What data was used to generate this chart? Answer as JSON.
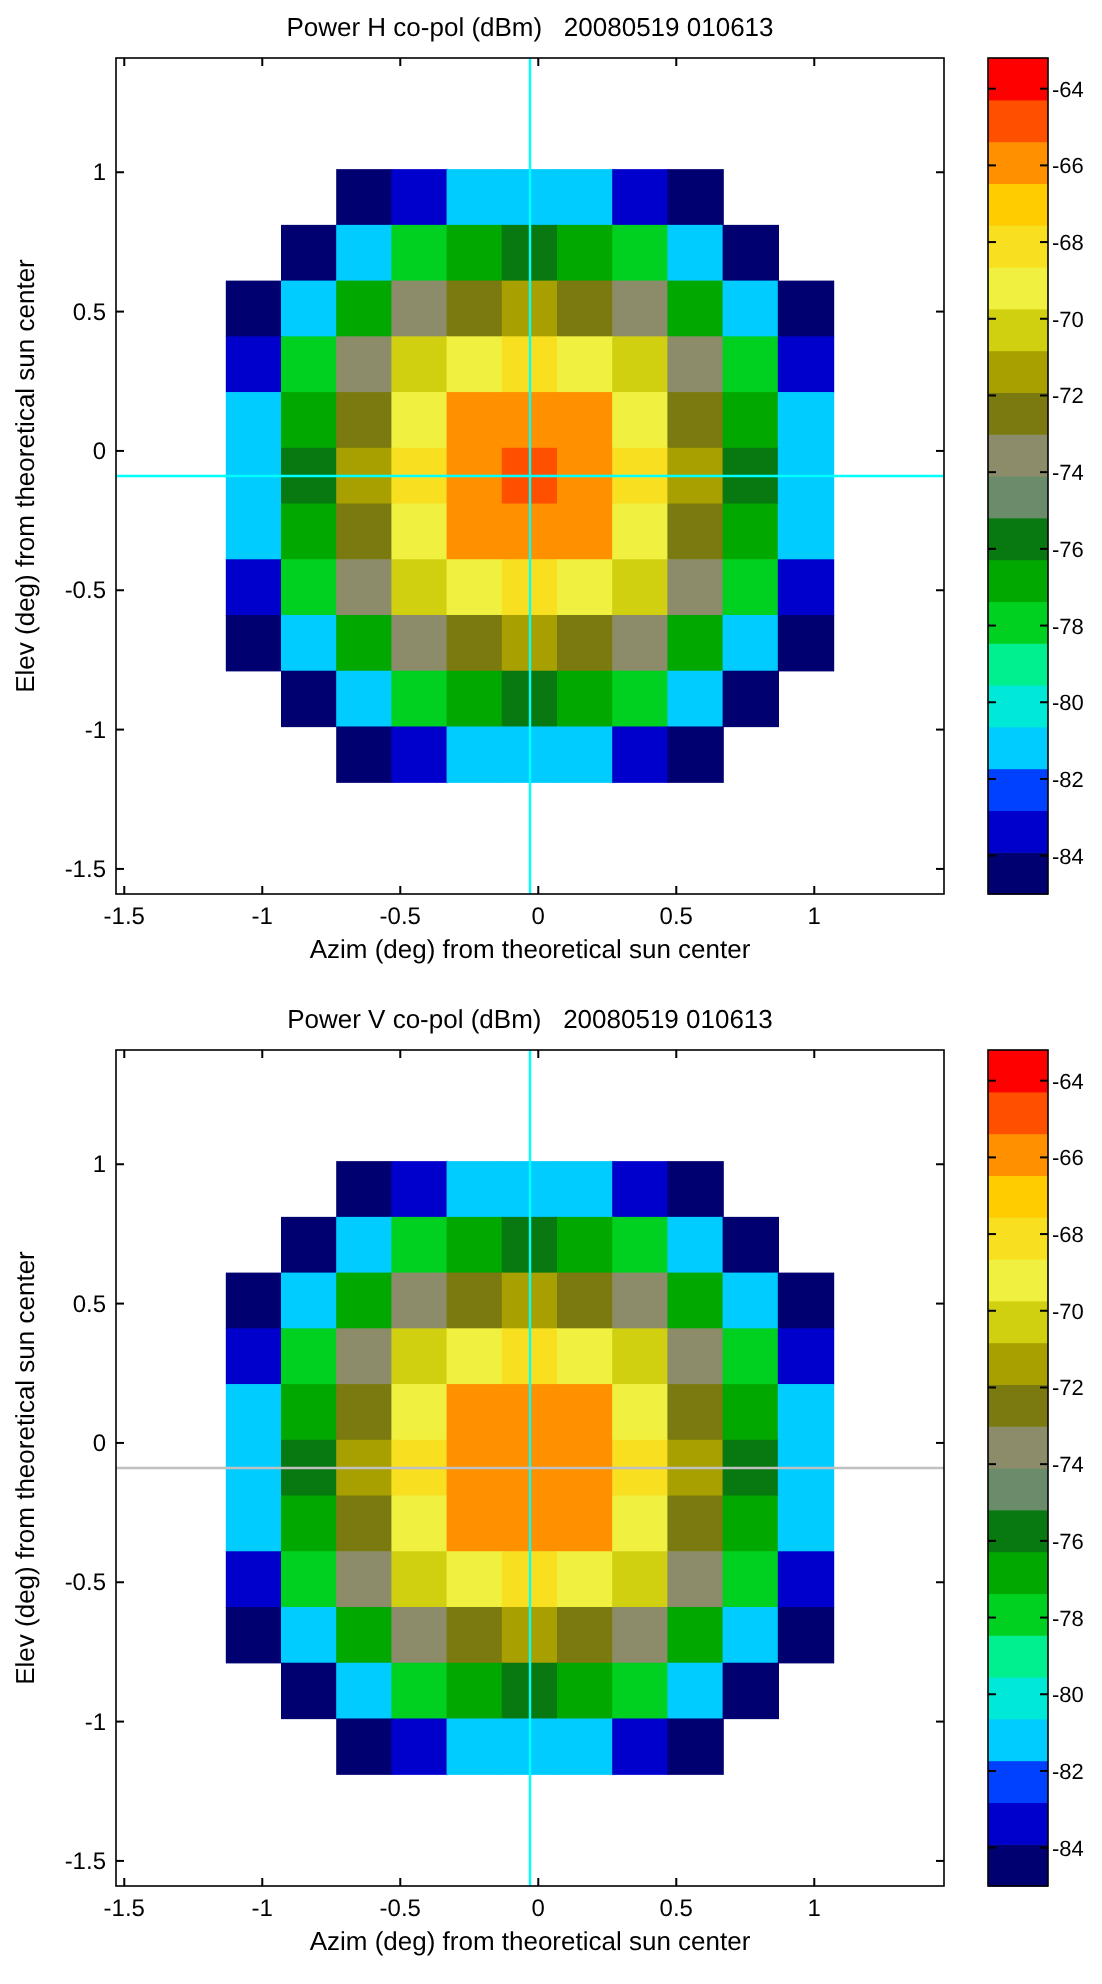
{
  "chart_data": [
    {
      "type": "scatter",
      "marker": "square",
      "title": "Power H co-pol (dBm)   20080519 010613",
      "xlabel": "Azim (deg) from theoretical sun center",
      "ylabel": "Elev (deg) from theoretical sun center",
      "xlim": [
        -1.53,
        1.47
      ],
      "xticks": [
        -1.5,
        -1,
        -0.5,
        0,
        0.5,
        1
      ],
      "ylim": [
        -1.59,
        1.41
      ],
      "yticks": [
        -1.5,
        -1,
        -0.5,
        0,
        0.5,
        1
      ],
      "clim": [
        -85,
        -63.2
      ],
      "cticks": [
        -84,
        -82,
        -80,
        -78,
        -76,
        -74,
        -72,
        -70,
        -68,
        -66,
        -64
      ],
      "x": [
        -0.63,
        -0.43,
        -0.23,
        -0.03,
        0.17,
        0.37,
        0.57,
        -0.83,
        -0.63,
        -0.43,
        -0.23,
        -0.03,
        0.17,
        0.37,
        0.57,
        0.77,
        -1.03,
        -0.83,
        -0.63,
        -0.43,
        -0.23,
        -0.03,
        0.17,
        0.37,
        0.57,
        0.77,
        0.97,
        -1.03,
        -0.83,
        -0.63,
        -0.43,
        -0.23,
        -0.03,
        0.17,
        0.37,
        0.57,
        0.77,
        0.97,
        -1.03,
        -0.83,
        -0.63,
        -0.43,
        -0.23,
        -0.03,
        0.17,
        0.37,
        0.57,
        0.77,
        0.97,
        -1.03,
        -0.83,
        -0.63,
        -0.43,
        -0.23,
        -0.03,
        0.17,
        0.37,
        0.57,
        0.77,
        0.97,
        -1.03,
        -0.83,
        -0.63,
        -0.43,
        -0.23,
        -0.03,
        0.17,
        0.37,
        0.57,
        0.77,
        0.97,
        -1.03,
        -0.83,
        -0.63,
        -0.43,
        -0.23,
        -0.03,
        0.17,
        0.37,
        0.57,
        0.77,
        0.97,
        -1.03,
        -0.83,
        -0.63,
        -0.43,
        -0.23,
        -0.03,
        0.17,
        0.37,
        0.57,
        0.77,
        0.97,
        -0.83,
        -0.63,
        -0.43,
        -0.23,
        -0.03,
        0.17,
        0.37,
        0.57,
        0.77,
        -0.63,
        -0.43,
        -0.23,
        -0.03,
        0.17,
        0.37,
        0.57
      ],
      "values": [
        0.91,
        0.91,
        0.91,
        0.91,
        0.91,
        0.91,
        0.91,
        0.71,
        0.71,
        0.71,
        0.71,
        0.71,
        0.71,
        0.71,
        0.71,
        0.71,
        0.51,
        0.51,
        0.51,
        0.51,
        0.51,
        0.51,
        0.51,
        0.51,
        0.51,
        0.51,
        0.51,
        0.31,
        0.31,
        0.31,
        0.31,
        0.31,
        0.31,
        0.31,
        0.31,
        0.31,
        0.31,
        0.31,
        0.11,
        0.11,
        0.11,
        0.11,
        0.11,
        0.11,
        0.11,
        0.11,
        0.11,
        0.11,
        0.11,
        -0.09,
        -0.09,
        -0.09,
        -0.09,
        -0.09,
        -0.09,
        -0.09,
        -0.09,
        -0.09,
        -0.09,
        -0.09,
        -0.29,
        -0.29,
        -0.29,
        -0.29,
        -0.29,
        -0.29,
        -0.29,
        -0.29,
        -0.29,
        -0.29,
        -0.29,
        -0.49,
        -0.49,
        -0.49,
        -0.49,
        -0.49,
        -0.49,
        -0.49,
        -0.49,
        -0.49,
        -0.49,
        -0.49,
        -0.69,
        -0.69,
        -0.69,
        -0.69,
        -0.69,
        -0.69,
        -0.69,
        -0.69,
        -0.69,
        -0.69,
        -0.69,
        -0.89,
        -0.89,
        -0.89,
        -0.89,
        -0.89,
        -0.89,
        -0.89,
        -0.89,
        -0.89,
        -1.09,
        -1.09,
        -1.09,
        -1.09,
        -1.09,
        -1.09,
        -1.09
      ],
      "cvalues": [
        -84.9,
        -82.9,
        -81.5,
        -81,
        -81.5,
        -82.9,
        -84.9,
        -84.2,
        -81,
        -78.4,
        -76.6,
        -76,
        -76.6,
        -78.4,
        -81,
        -84.2,
        -84.9,
        -81,
        -77.2,
        -74,
        -72.1,
        -71.5,
        -72.1,
        -74,
        -77.2,
        -81,
        -84.9,
        -82.9,
        -78.4,
        -74,
        -70.8,
        -68.7,
        -68,
        -68.7,
        -70.8,
        -74,
        -78.4,
        -82.9,
        -81.5,
        -76.6,
        -72.1,
        -68.7,
        -66.3,
        -65.6,
        -66.3,
        -68.7,
        -72.1,
        -76.6,
        -81.5,
        -81,
        -76,
        -71.5,
        -68,
        -65.6,
        -64.8,
        -65.6,
        -68,
        -71.5,
        -76,
        -81,
        -81.5,
        -76.6,
        -72.1,
        -68.7,
        -66.3,
        -65.6,
        -66.3,
        -68.7,
        -72.1,
        -76.6,
        -81.5,
        -82.9,
        -78.4,
        -74,
        -70.8,
        -68.7,
        -68,
        -68.7,
        -70.8,
        -74,
        -78.4,
        -82.9,
        -84.9,
        -81,
        -77.2,
        -74,
        -72.1,
        -71.5,
        -72.1,
        -74,
        -77.2,
        -81,
        -84.9,
        -84.2,
        -81,
        -78.4,
        -76.6,
        -76,
        -76.6,
        -78.4,
        -81,
        -84.2,
        -84.9,
        -82.9,
        -81.5,
        -81,
        -81.5,
        -82.9,
        -84.9
      ],
      "ref_lines": [
        {
          "axis": "x",
          "value": -0.03,
          "color": "#00ffff"
        },
        {
          "axis": "y",
          "value": -0.09,
          "color": "#00ffff"
        }
      ]
    },
    {
      "type": "scatter",
      "marker": "square",
      "title": "Power V co-pol (dBm)   20080519 010613",
      "xlabel": "Azim (deg) from theoretical sun center",
      "ylabel": "Elev (deg) from theoretical sun center",
      "xlim": [
        -1.53,
        1.47
      ],
      "xticks": [
        -1.5,
        -1,
        -0.5,
        0,
        0.5,
        1
      ],
      "ylim": [
        -1.59,
        1.41
      ],
      "yticks": [
        -1.5,
        -1,
        -0.5,
        0,
        0.5,
        1
      ],
      "clim": [
        -85,
        -63.2
      ],
      "cticks": [
        -84,
        -82,
        -80,
        -78,
        -76,
        -74,
        -72,
        -70,
        -68,
        -66,
        -64
      ],
      "x": [
        -0.63,
        -0.43,
        -0.23,
        -0.03,
        0.17,
        0.37,
        0.57,
        -0.83,
        -0.63,
        -0.43,
        -0.23,
        -0.03,
        0.17,
        0.37,
        0.57,
        0.77,
        -1.03,
        -0.83,
        -0.63,
        -0.43,
        -0.23,
        -0.03,
        0.17,
        0.37,
        0.57,
        0.77,
        0.97,
        -1.03,
        -0.83,
        -0.63,
        -0.43,
        -0.23,
        -0.03,
        0.17,
        0.37,
        0.57,
        0.77,
        0.97,
        -1.03,
        -0.83,
        -0.63,
        -0.43,
        -0.23,
        -0.03,
        0.17,
        0.37,
        0.57,
        0.77,
        0.97,
        -1.03,
        -0.83,
        -0.63,
        -0.43,
        -0.23,
        -0.03,
        0.17,
        0.37,
        0.57,
        0.77,
        0.97,
        -1.03,
        -0.83,
        -0.63,
        -0.43,
        -0.23,
        -0.03,
        0.17,
        0.37,
        0.57,
        0.77,
        0.97,
        -1.03,
        -0.83,
        -0.63,
        -0.43,
        -0.23,
        -0.03,
        0.17,
        0.37,
        0.57,
        0.77,
        0.97,
        -1.03,
        -0.83,
        -0.63,
        -0.43,
        -0.23,
        -0.03,
        0.17,
        0.37,
        0.57,
        0.77,
        0.97,
        -0.83,
        -0.63,
        -0.43,
        -0.23,
        -0.03,
        0.17,
        0.37,
        0.57,
        0.77,
        -0.63,
        -0.43,
        -0.23,
        -0.03,
        0.17,
        0.37,
        0.57
      ],
      "values": [
        0.91,
        0.91,
        0.91,
        0.91,
        0.91,
        0.91,
        0.91,
        0.71,
        0.71,
        0.71,
        0.71,
        0.71,
        0.71,
        0.71,
        0.71,
        0.71,
        0.51,
        0.51,
        0.51,
        0.51,
        0.51,
        0.51,
        0.51,
        0.51,
        0.51,
        0.51,
        0.51,
        0.31,
        0.31,
        0.31,
        0.31,
        0.31,
        0.31,
        0.31,
        0.31,
        0.31,
        0.31,
        0.31,
        0.11,
        0.11,
        0.11,
        0.11,
        0.11,
        0.11,
        0.11,
        0.11,
        0.11,
        0.11,
        0.11,
        -0.09,
        -0.09,
        -0.09,
        -0.09,
        -0.09,
        -0.09,
        -0.09,
        -0.09,
        -0.09,
        -0.09,
        -0.09,
        -0.29,
        -0.29,
        -0.29,
        -0.29,
        -0.29,
        -0.29,
        -0.29,
        -0.29,
        -0.29,
        -0.29,
        -0.29,
        -0.49,
        -0.49,
        -0.49,
        -0.49,
        -0.49,
        -0.49,
        -0.49,
        -0.49,
        -0.49,
        -0.49,
        -0.49,
        -0.69,
        -0.69,
        -0.69,
        -0.69,
        -0.69,
        -0.69,
        -0.69,
        -0.69,
        -0.69,
        -0.69,
        -0.69,
        -0.89,
        -0.89,
        -0.89,
        -0.89,
        -0.89,
        -0.89,
        -0.89,
        -0.89,
        -0.89,
        -1.09,
        -1.09,
        -1.09,
        -1.09,
        -1.09,
        -1.09,
        -1.09
      ],
      "cvalues": [
        -84.9,
        -82.9,
        -81.5,
        -81,
        -81.5,
        -82.9,
        -84.9,
        -84.2,
        -81,
        -78.4,
        -76.6,
        -76,
        -76.6,
        -78.4,
        -81,
        -84.2,
        -84.9,
        -81,
        -77.2,
        -74,
        -72.1,
        -71.5,
        -72.1,
        -74,
        -77.2,
        -81,
        -84.9,
        -82.9,
        -78.4,
        -74,
        -70.8,
        -68.7,
        -68,
        -68.7,
        -70.8,
        -74,
        -78.4,
        -82.9,
        -81.5,
        -76.6,
        -72.1,
        -68.7,
        -66.3,
        -65.8,
        -66.3,
        -68.7,
        -72.1,
        -76.6,
        -81.5,
        -81,
        -76,
        -71.5,
        -68,
        -65.8,
        -65.5,
        -65.8,
        -68,
        -71.5,
        -76,
        -81,
        -81.5,
        -76.6,
        -72.1,
        -68.7,
        -66.3,
        -65.8,
        -66.3,
        -68.7,
        -72.1,
        -76.6,
        -81.5,
        -82.9,
        -78.4,
        -74,
        -70.8,
        -68.7,
        -68,
        -68.7,
        -70.8,
        -74,
        -78.4,
        -82.9,
        -84.9,
        -81,
        -77.2,
        -74,
        -72.1,
        -71.5,
        -72.1,
        -74,
        -77.2,
        -81,
        -84.9,
        -84.2,
        -81,
        -78.4,
        -76.6,
        -76,
        -76.6,
        -78.4,
        -81,
        -84.2,
        -84.9,
        -82.9,
        -81.5,
        -81,
        -81.5,
        -82.9,
        -84.9
      ],
      "ref_lines": [
        {
          "axis": "x",
          "value": -0.03,
          "color": "#00ffff"
        },
        {
          "axis": "y",
          "value": -0.09,
          "color": "#c0c0c0"
        }
      ]
    }
  ]
}
